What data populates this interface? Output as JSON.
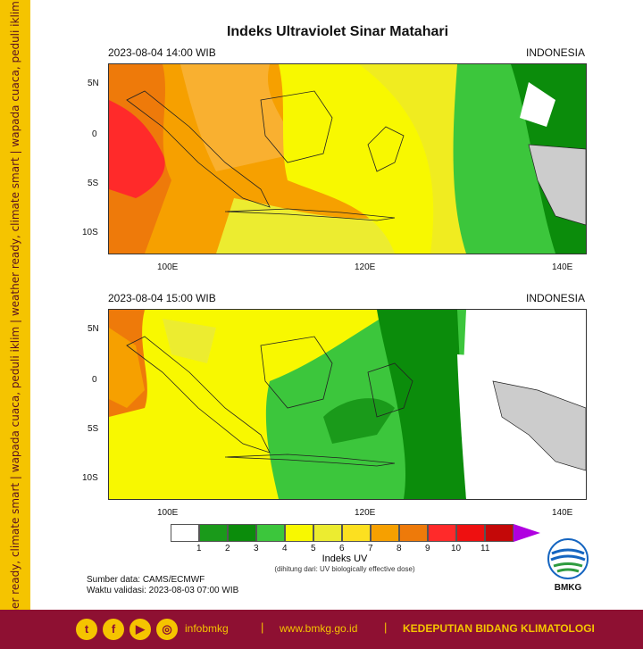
{
  "side_banner": "weather ready, climate smart  |  wapada cuaca, peduli iklim  |  weather ready, climate smart  |  wapada cuaca, peduli iklim",
  "title": "Indeks Ultraviolet Sinar Matahari",
  "maps": [
    {
      "datetime": "2023-08-04  14:00 WIB",
      "region": "INDONESIA"
    },
    {
      "datetime": "2023-08-04  15:00 WIB",
      "region": "INDONESIA"
    }
  ],
  "axes": {
    "lat_ticks": [
      "5N",
      "0",
      "5S",
      "10S"
    ],
    "lon_ticks": [
      "100E",
      "120E",
      "140E"
    ]
  },
  "legend": {
    "title": "Indeks UV",
    "subtitle": "(dihitung dari: UV biologically effective dose)",
    "ticks": [
      "1",
      "2",
      "3",
      "4",
      "5",
      "6",
      "7",
      "8",
      "9",
      "10",
      "11"
    ],
    "colors": [
      "#ffffff",
      "#1a9a1a",
      "#0b8c0b",
      "#3cc63c",
      "#f8f800",
      "#ecec30",
      "#fce020",
      "#f6a000",
      "#ee7a0a",
      "#ff2a2a",
      "#ee1010",
      "#c40808",
      "#b000e0"
    ]
  },
  "source": {
    "data": "Sumber data: CAMS/ECMWF",
    "validity": "Waktu validasi: 2023-08-03 07:00 WIB"
  },
  "logo": {
    "text": "BMKG"
  },
  "footer": {
    "social_icons": [
      "twitter-icon",
      "facebook-icon",
      "youtube-icon",
      "instagram-icon"
    ],
    "handle": "infobmkg",
    "website": "www.bmkg.go.id",
    "department": "KEDEPUTIAN BIDANG KLIMATOLOGI"
  }
}
